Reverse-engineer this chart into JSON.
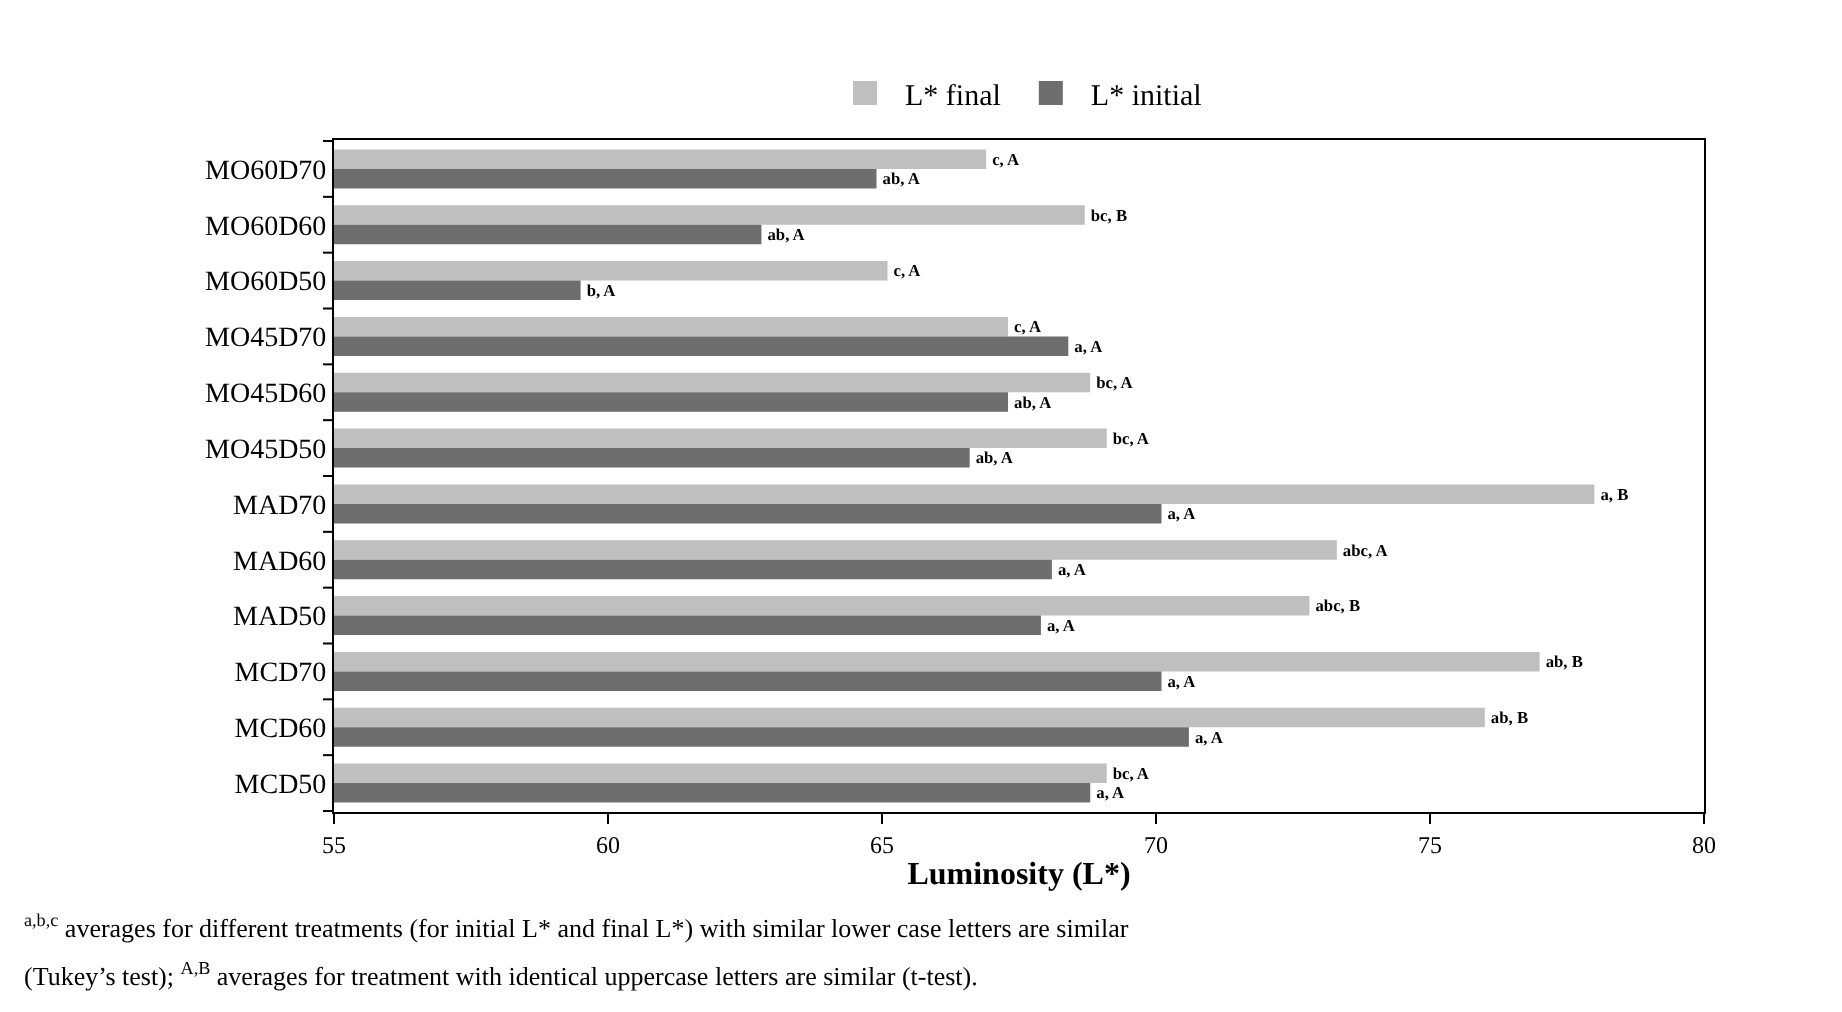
{
  "chart_data": {
    "type": "bar",
    "orientation": "horizontal",
    "xlabel": "Luminosity (L*)",
    "categories": [
      "MO60D70",
      "MO60D60",
      "MO60D50",
      "MO45D70",
      "MO45D60",
      "MO45D50",
      "MAD70",
      "MAD60",
      "MAD50",
      "MCD70",
      "MCD60",
      "MCD50"
    ],
    "series": [
      {
        "name": "L* final",
        "color": "#bfbfbf",
        "values": [
          66.9,
          68.7,
          65.1,
          67.3,
          68.8,
          69.1,
          78.0,
          73.3,
          72.8,
          77.0,
          76.0,
          69.1
        ],
        "value_labels": [
          "c, A",
          "bc, B",
          "c, A",
          "c, A",
          "bc, A",
          "bc, A",
          "a, B",
          "abc, A",
          "abc, B",
          "ab, B",
          "ab, B",
          "bc, A"
        ]
      },
      {
        "name": "L* initial",
        "color": "#6e6e6e",
        "values": [
          64.9,
          62.8,
          59.5,
          68.4,
          67.3,
          66.6,
          70.1,
          68.1,
          67.9,
          70.1,
          70.6,
          68.8
        ],
        "value_labels": [
          "ab, A",
          "ab, A",
          "b, A",
          "a, A",
          "ab, A",
          "ab, A",
          "a, A",
          "a, A",
          "a, A",
          "a, A",
          "a, A",
          "a, A"
        ]
      }
    ],
    "xlim": [
      55,
      80
    ],
    "xticks": [
      55,
      60,
      65,
      70,
      75,
      80
    ],
    "grid": false,
    "legend": "top",
    "annotations": [
      "$^{a,b,c}$ averages for different treatments (for initial L* and final L*) with similar lower case letters are similar",
      "(Tukey’s test); $^{A,B}$ averages for treatment with identical uppercase letters are similar (t-test)."
    ]
  }
}
